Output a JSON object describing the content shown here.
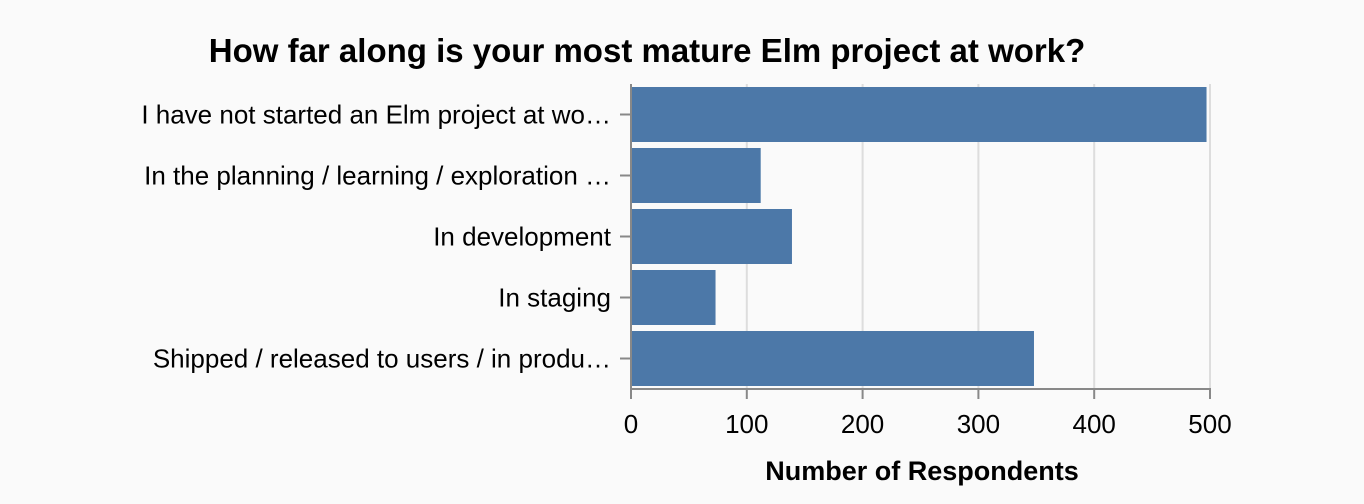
{
  "chart_data": {
    "type": "bar",
    "orientation": "horizontal",
    "title": "How far along is your most mature Elm project at work?",
    "xlabel": "Number of Respondents",
    "ylabel": "",
    "categories": [
      "I have not started an Elm project at wo…",
      "In the planning / learning / exploration …",
      "In development",
      "In staging",
      "Shipped / released to users / in produ…"
    ],
    "values": [
      497,
      112,
      139,
      73,
      348
    ],
    "xlim": [
      0,
      500
    ],
    "x_ticks": [
      "0",
      "100",
      "200",
      "300",
      "400",
      "500"
    ],
    "grid": true,
    "bar_color": "#4c78a8",
    "grid_color": "#dddddd",
    "axis_color": "#888888"
  }
}
